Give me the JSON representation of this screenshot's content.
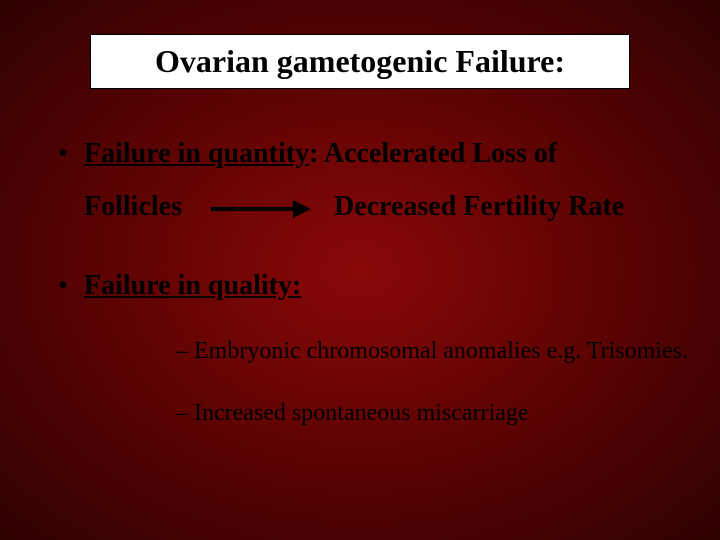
{
  "colors": {
    "background_center": "#8a0808",
    "background_mid": "#5c0303",
    "background_edge": "#2e0101",
    "title_box_bg": "#ffffff",
    "title_box_border": "#000000",
    "text_color": "#000000",
    "arrow_color": "#000000"
  },
  "typography": {
    "title_fontsize": 32,
    "bullet1_fontsize": 28,
    "bullet2_fontsize": 24,
    "font_family": "Times New Roman"
  },
  "title": "Ovarian gametogenic Failure:",
  "bullets": [
    {
      "lead_underlined": "Failure in quantity",
      "lead_colon": ":",
      "rest1": " Accelerated Loss of",
      "line2_left": "Follicles",
      "line2_right": "Decreased Fertility Rate"
    },
    {
      "lead_underlined": "Failure in quality:",
      "sub": [
        "– Embryonic chromosomal anomalies e.g. Trisomies.",
        "– Increased spontaneous miscarriage"
      ]
    }
  ]
}
